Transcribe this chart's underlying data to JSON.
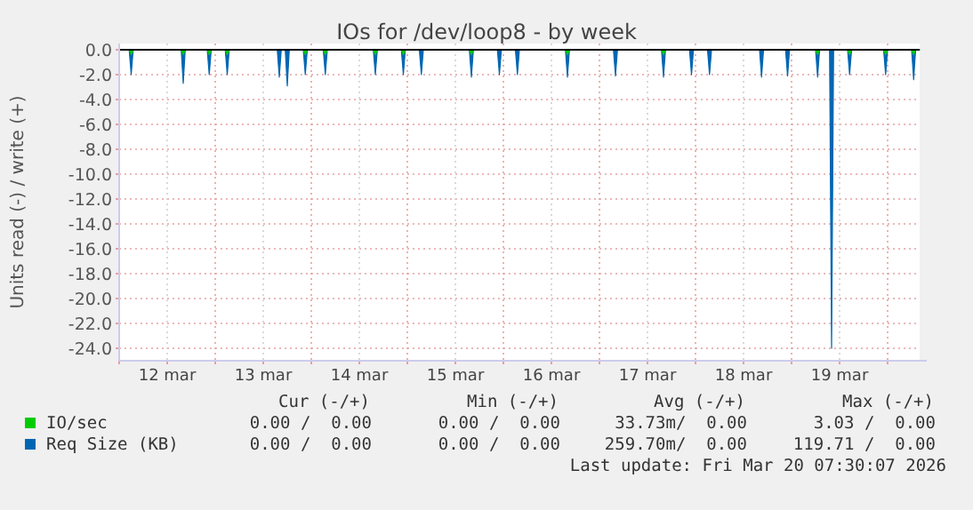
{
  "chart_data": {
    "type": "area",
    "title": "IOs for /dev/loop8 - by week",
    "ylabel": "Units read (-) / write (+)",
    "xlim": [
      "2026-03-12T00:00",
      "2026-03-20T08:00"
    ],
    "xticks": [
      {
        "value": "2026-03-12T00:00",
        "label": null
      },
      {
        "value": "2026-03-12T12:00",
        "label": "12 mar"
      },
      {
        "value": "2026-03-13T00:00",
        "label": null
      },
      {
        "value": "2026-03-13T12:00",
        "label": "13 mar"
      },
      {
        "value": "2026-03-14T00:00",
        "label": null
      },
      {
        "value": "2026-03-14T12:00",
        "label": "14 mar"
      },
      {
        "value": "2026-03-15T00:00",
        "label": null
      },
      {
        "value": "2026-03-15T12:00",
        "label": "15 mar"
      },
      {
        "value": "2026-03-16T00:00",
        "label": null
      },
      {
        "value": "2026-03-16T12:00",
        "label": "16 mar"
      },
      {
        "value": "2026-03-17T00:00",
        "label": null
      },
      {
        "value": "2026-03-17T12:00",
        "label": "17 mar"
      },
      {
        "value": "2026-03-18T00:00",
        "label": null
      },
      {
        "value": "2026-03-18T12:00",
        "label": "18 mar"
      },
      {
        "value": "2026-03-19T00:00",
        "label": null
      },
      {
        "value": "2026-03-19T12:00",
        "label": "19 mar"
      },
      {
        "value": "2026-03-20T00:00",
        "label": null
      }
    ],
    "ylim": [
      -25,
      0.5
    ],
    "yticks": [
      {
        "value": -24,
        "label": "-24.0"
      },
      {
        "value": -22,
        "label": "-22.0"
      },
      {
        "value": -20,
        "label": "-20.0"
      },
      {
        "value": -18,
        "label": "-18.0"
      },
      {
        "value": -16,
        "label": "-16.0"
      },
      {
        "value": -14,
        "label": "-14.0"
      },
      {
        "value": -12,
        "label": "-12.0"
      },
      {
        "value": -10,
        "label": "-10.0"
      },
      {
        "value": -8,
        "label": "-8.0"
      },
      {
        "value": -6,
        "label": "-6.0"
      },
      {
        "value": -4,
        "label": "-4.0"
      },
      {
        "value": -2,
        "label": "-2.0"
      },
      {
        "value": 0,
        "label": "0.0"
      }
    ],
    "grid": true,
    "legend": "bottom left",
    "series": [
      {
        "name": "IO/sec",
        "color": "#00cc00",
        "x": [
          "2026-03-12T00:00",
          "2026-03-12T02:30",
          "2026-03-12T03:00",
          "2026-03-12T03:30",
          "2026-03-12T15:30",
          "2026-03-12T16:00",
          "2026-03-12T16:30",
          "2026-03-12T22:00",
          "2026-03-12T22:30",
          "2026-03-12T23:00",
          "2026-03-13T02:30",
          "2026-03-13T03:00",
          "2026-03-13T03:30",
          "2026-03-13T22:00",
          "2026-03-13T22:30",
          "2026-03-13T23:00",
          "2026-03-14T03:00",
          "2026-03-14T03:30",
          "2026-03-14T04:00",
          "2026-03-14T15:30",
          "2026-03-14T16:00",
          "2026-03-14T16:30",
          "2026-03-14T22:30",
          "2026-03-14T23:00",
          "2026-03-14T23:30",
          "2026-03-15T15:30",
          "2026-03-15T16:00",
          "2026-03-15T16:30",
          "2026-03-16T15:30",
          "2026-03-16T16:00",
          "2026-03-16T16:30",
          "2026-03-17T15:30",
          "2026-03-17T16:00",
          "2026-03-17T16:30",
          "2026-03-19T06:00",
          "2026-03-19T06:30",
          "2026-03-19T07:00",
          "2026-03-19T14:00",
          "2026-03-19T14:30",
          "2026-03-19T15:00",
          "2026-03-19T23:00",
          "2026-03-19T23:30",
          "2026-03-20T00:00",
          "2026-03-20T06:00",
          "2026-03-20T06:30",
          "2026-03-20T07:00",
          "2026-03-20T08:00"
        ],
        "values": [
          0,
          0,
          -0.4,
          0,
          0,
          -0.4,
          0,
          0,
          -0.4,
          0,
          0,
          -0.4,
          0,
          0,
          -0.4,
          0,
          0,
          -0.4,
          0,
          0,
          -0.4,
          0,
          0,
          -0.4,
          0,
          0,
          -0.4,
          0,
          0,
          -0.4,
          0,
          0,
          -0.4,
          0,
          0,
          -0.4,
          0,
          0,
          -0.4,
          0,
          0,
          -0.4,
          0,
          0,
          -0.4,
          0,
          0
        ]
      },
      {
        "name": "Req Size (KB)",
        "color": "#0066b3",
        "x": [
          "2026-03-12T00:00",
          "2026-03-12T02:30",
          "2026-03-12T03:00",
          "2026-03-12T03:30",
          "2026-03-12T15:30",
          "2026-03-12T16:00",
          "2026-03-12T16:30",
          "2026-03-12T22:00",
          "2026-03-12T22:30",
          "2026-03-12T23:00",
          "2026-03-13T02:30",
          "2026-03-13T03:00",
          "2026-03-13T03:30",
          "2026-03-13T15:30",
          "2026-03-13T16:00",
          "2026-03-13T16:30",
          "2026-03-13T17:30",
          "2026-03-13T18:00",
          "2026-03-13T18:30",
          "2026-03-13T22:00",
          "2026-03-13T22:30",
          "2026-03-13T23:00",
          "2026-03-14T03:00",
          "2026-03-14T03:30",
          "2026-03-14T04:00",
          "2026-03-14T15:30",
          "2026-03-14T16:00",
          "2026-03-14T16:30",
          "2026-03-14T22:30",
          "2026-03-14T23:00",
          "2026-03-14T23:30",
          "2026-03-15T03:00",
          "2026-03-15T03:30",
          "2026-03-15T04:00",
          "2026-03-15T15:30",
          "2026-03-15T16:00",
          "2026-03-15T16:30",
          "2026-03-15T22:30",
          "2026-03-15T23:00",
          "2026-03-15T23:30",
          "2026-03-16T03:00",
          "2026-03-16T03:30",
          "2026-03-16T04:00",
          "2026-03-16T15:30",
          "2026-03-16T16:00",
          "2026-03-16T16:30",
          "2026-03-17T03:30",
          "2026-03-17T04:00",
          "2026-03-17T04:30",
          "2026-03-17T15:30",
          "2026-03-17T16:00",
          "2026-03-17T16:30",
          "2026-03-17T22:30",
          "2026-03-17T23:00",
          "2026-03-17T23:30",
          "2026-03-18T03:00",
          "2026-03-18T03:30",
          "2026-03-18T04:00",
          "2026-03-18T16:00",
          "2026-03-18T16:30",
          "2026-03-18T17:00",
          "2026-03-18T22:30",
          "2026-03-18T23:00",
          "2026-03-18T23:30",
          "2026-03-19T06:00",
          "2026-03-19T06:30",
          "2026-03-19T07:00",
          "2026-03-19T09:30",
          "2026-03-19T10:00",
          "2026-03-19T10:30",
          "2026-03-19T14:00",
          "2026-03-19T14:30",
          "2026-03-19T15:00",
          "2026-03-19T23:00",
          "2026-03-19T23:30",
          "2026-03-20T00:00",
          "2026-03-20T06:00",
          "2026-03-20T06:30",
          "2026-03-20T07:00",
          "2026-03-20T08:00"
        ],
        "values": [
          0,
          0,
          -2.0,
          0,
          0,
          -2.7,
          0,
          0,
          -2.0,
          0,
          0,
          -2.0,
          0,
          0,
          -2.2,
          0,
          0,
          -2.9,
          0,
          0,
          -2.0,
          0,
          0,
          -2.0,
          0,
          0,
          -2.0,
          0,
          0,
          -2.0,
          0,
          0,
          -2.0,
          0,
          0,
          -2.2,
          0,
          0,
          -2.0,
          0,
          0,
          -2.0,
          0,
          0,
          -2.2,
          0,
          0,
          -2.1,
          0,
          0,
          -2.2,
          0,
          0,
          -2.0,
          0,
          0,
          -2.0,
          0,
          0,
          -2.2,
          0,
          0,
          -2.1,
          0,
          0,
          -2.2,
          0,
          0,
          -24.0,
          0,
          0,
          -2.0,
          0,
          0,
          -2.0,
          0,
          0,
          -2.4,
          0,
          0
        ]
      }
    ],
    "annotations": [
      "Cur (-/+)",
      "Min (-/+)",
      "Avg (-/+)",
      "Max (-/+)",
      "0.00 /  0.00",
      "0.00 /  0.00",
      "33.73m/  0.00",
      "3.03 /  0.00",
      "0.00 /  0.00",
      "0.00 /  0.00",
      "259.70m/  0.00",
      "119.71 /  0.00",
      "Last update: Fri Mar 20 07:30:07 2026"
    ]
  }
}
